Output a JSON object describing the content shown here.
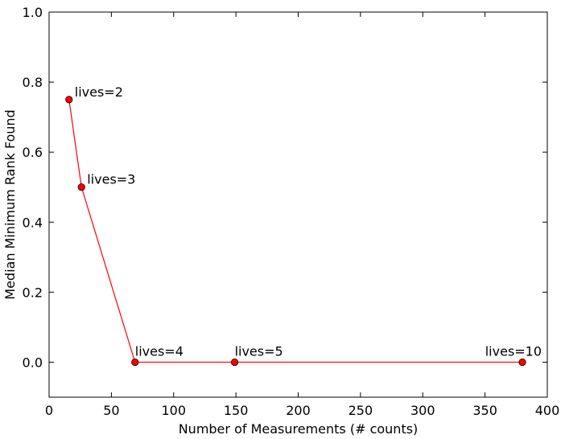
{
  "chart_data": {
    "type": "line",
    "title": "",
    "xlabel": "Number of Measurements (# counts)",
    "ylabel": "Median Minimum Rank Found",
    "xlim": [
      0,
      400
    ],
    "ylim": [
      -0.1,
      1.0
    ],
    "xticks": [
      0,
      50,
      100,
      150,
      200,
      250,
      300,
      350,
      400
    ],
    "yticks": [
      0.0,
      0.2,
      0.4,
      0.6,
      0.8,
      1.0
    ],
    "xtick_labels": [
      "0",
      "50",
      "100",
      "150",
      "200",
      "250",
      "300",
      "350",
      "400"
    ],
    "ytick_labels": [
      "0.0",
      "0.2",
      "0.4",
      "0.6",
      "0.8",
      "1.0"
    ],
    "grid": false,
    "series": [
      {
        "color": "#ff0000",
        "marker": "circle",
        "x": [
          16,
          26,
          69,
          149,
          380
        ],
        "y": [
          0.75,
          0.5,
          0.0,
          0.0,
          0.0
        ]
      }
    ],
    "annotations": [
      {
        "text": "lives=2",
        "x": 16,
        "y": 0.75
      },
      {
        "text": "lives=3",
        "x": 26,
        "y": 0.5
      },
      {
        "text": "lives=4",
        "x": 69,
        "y": 0.0
      },
      {
        "text": "lives=5",
        "x": 149,
        "y": 0.0
      },
      {
        "text": "lives=10",
        "x": 380,
        "y": 0.0
      }
    ]
  }
}
